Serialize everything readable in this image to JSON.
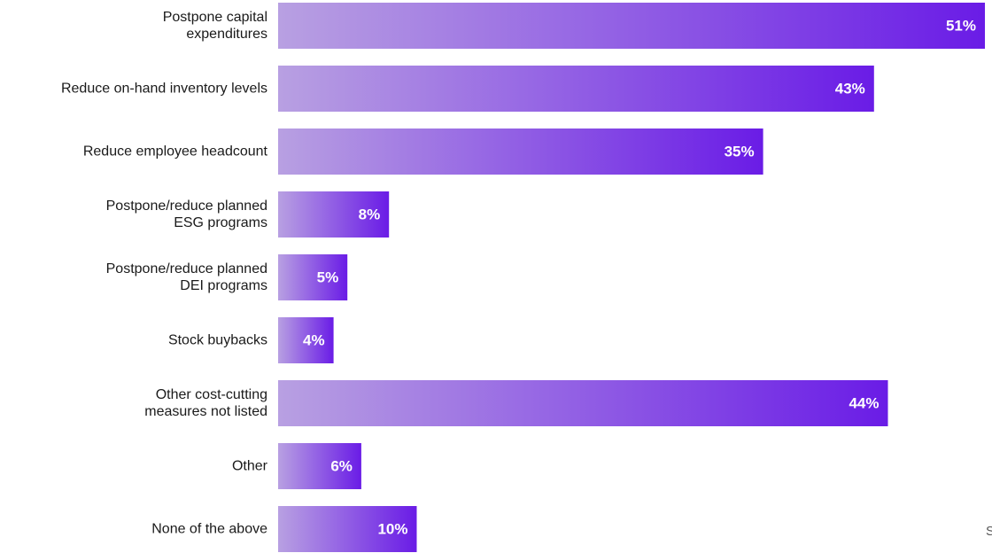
{
  "chart_data": {
    "type": "bar",
    "orientation": "horizontal",
    "title": "",
    "xlabel": "",
    "ylabel": "",
    "xlim": [
      0,
      51
    ],
    "grid": false,
    "value_format": "percent",
    "categories": [
      [
        "Postpone capital",
        "expenditures"
      ],
      [
        "Reduce on-hand inventory levels"
      ],
      [
        "Reduce employee headcount"
      ],
      [
        "Postpone/reduce planned",
        "ESG programs"
      ],
      [
        "Postpone/reduce planned",
        "DEI programs"
      ],
      [
        "Stock buybacks"
      ],
      [
        "Other cost-cutting",
        "measures not listed"
      ],
      [
        "Other"
      ],
      [
        "None of the above"
      ]
    ],
    "values": [
      51,
      43,
      35,
      8,
      5,
      4,
      44,
      6,
      10
    ],
    "value_labels": [
      "51%",
      "43%",
      "35%",
      "8%",
      "5%",
      "4%",
      "44%",
      "6%",
      "10%"
    ],
    "colors": {
      "bar_start": "#b8a0e2",
      "bar_end": "#6a1ce6",
      "value_text": "#ffffff",
      "label_text": "#1a1a1a"
    }
  },
  "corner_fragment": "S"
}
